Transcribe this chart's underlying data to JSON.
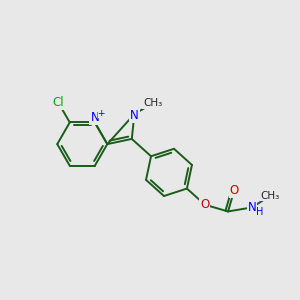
{
  "background_color": "#e8e8e8",
  "bond_color": "#1a5c1a",
  "nitrogen_color": "#0000ff",
  "oxygen_color": "#cc0000",
  "chlorine_color": "#00aa00",
  "figsize": [
    3.0,
    3.0
  ],
  "dpi": 100,
  "xlim": [
    0,
    10
  ],
  "ylim": [
    0,
    10
  ],
  "lw": 1.4
}
